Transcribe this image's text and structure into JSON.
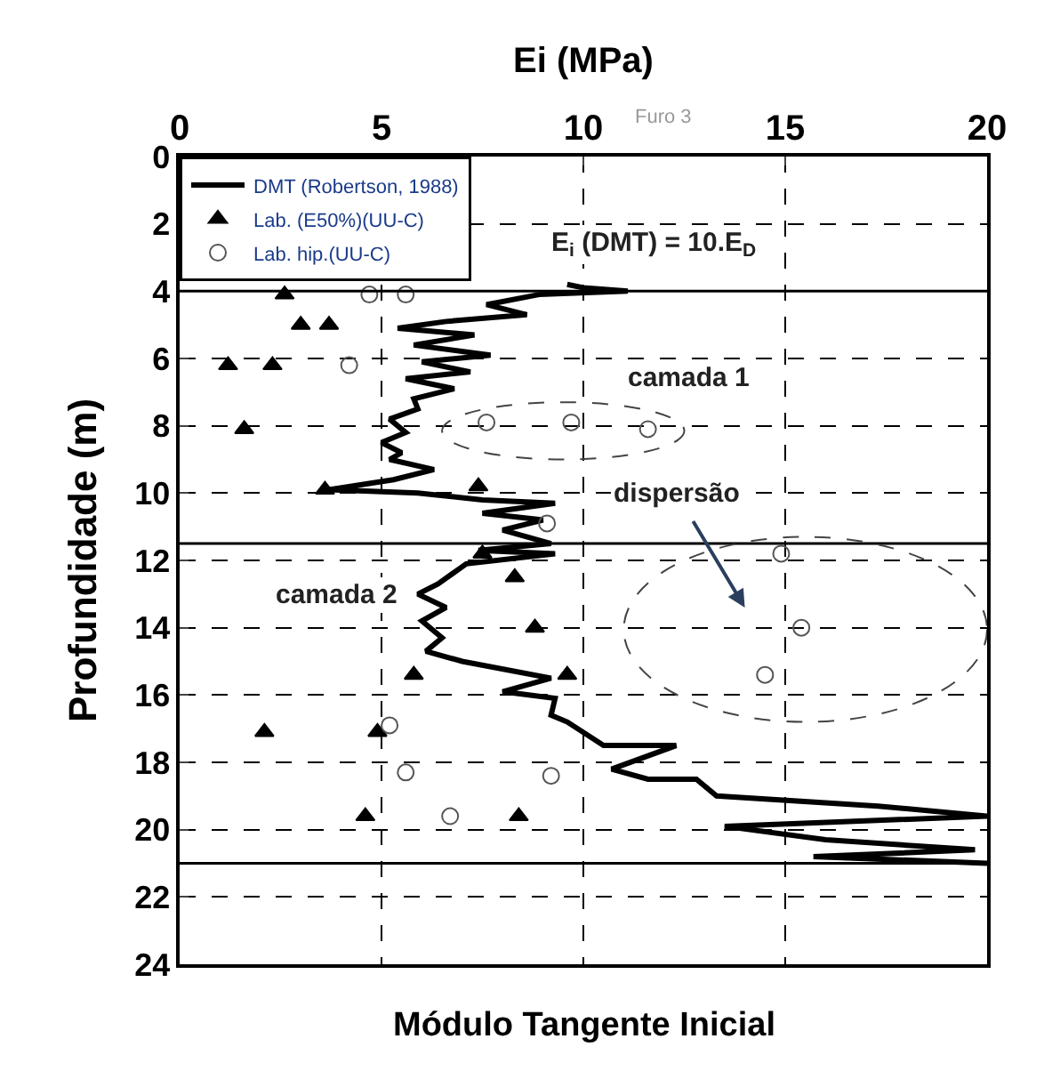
{
  "chart_data": {
    "type": "line",
    "xlabel": "Ei (MPa)",
    "ylabel": "Profundidade (m)",
    "xlim": [
      0,
      20
    ],
    "xticks": [
      0,
      5,
      10,
      15,
      20
    ],
    "ylim": [
      24,
      0
    ],
    "yticks": [
      0,
      2,
      4,
      6,
      8,
      10,
      12,
      14,
      16,
      18,
      20,
      22,
      24
    ],
    "grid": true,
    "legend": "top left",
    "series": [
      {
        "name": "DMT (Robertson, 1988)",
        "color": "#000000",
        "marker": "none",
        "line_style": "solid",
        "x": [
          9.6,
          10.0,
          11.1,
          8.9,
          7.6,
          8.6,
          6.6,
          5.4,
          7.3,
          5.8,
          7.7,
          6.0,
          7.2,
          5.6,
          6.8,
          5.8,
          5.9,
          5.2,
          5.6,
          5.0,
          5.5,
          5.2,
          6.3,
          5.3,
          3.7,
          5.9,
          7.5,
          9.3,
          7.5,
          9.0,
          8.0,
          9.2,
          7.4,
          9.3,
          7.1,
          6.4,
          5.9,
          6.6,
          6.0,
          6.5,
          6.1,
          7.0,
          9.2,
          8.0,
          9.3,
          9.2,
          9.6,
          10.5,
          12.3,
          10.7,
          11.6,
          12.8,
          13.3,
          17.3,
          20.0,
          13.5,
          16.0,
          19.7,
          15.7,
          20.0
        ],
        "values": [
          3.8,
          3.9,
          4.0,
          4.1,
          4.4,
          4.7,
          4.9,
          5.1,
          5.3,
          5.6,
          5.9,
          6.1,
          6.4,
          6.6,
          6.9,
          7.2,
          7.5,
          7.8,
          8.2,
          8.5,
          8.8,
          9.0,
          9.3,
          9.6,
          9.9,
          10.0,
          10.2,
          10.3,
          10.6,
          10.8,
          11.1,
          11.5,
          11.7,
          11.8,
          12.1,
          12.7,
          13.0,
          13.4,
          13.8,
          14.3,
          14.7,
          15.0,
          15.5,
          15.9,
          16.1,
          16.6,
          16.8,
          17.5,
          17.5,
          18.2,
          18.5,
          18.5,
          19.0,
          19.3,
          19.6,
          19.9,
          20.3,
          20.6,
          20.8,
          21.0
        ]
      },
      {
        "name": "Lab. (E50%)(UU-C)",
        "type": "scatter",
        "color": "#000000",
        "marker": "triangle",
        "x": [
          2.6,
          3.0,
          3.7,
          1.2,
          2.3,
          1.6,
          3.6,
          7.4,
          7.5,
          8.3,
          8.8,
          5.8,
          9.6,
          2.1,
          4.9,
          4.6,
          8.4
        ],
        "values": [
          4.1,
          5.0,
          5.0,
          6.2,
          6.2,
          8.1,
          9.9,
          9.8,
          11.8,
          12.5,
          14.0,
          15.4,
          15.4,
          17.1,
          17.1,
          19.6,
          19.6
        ]
      },
      {
        "name": "Lab. hip.(UU-C)",
        "type": "scatter",
        "color": "#555555",
        "marker": "circle",
        "x": [
          4.7,
          5.6,
          4.2,
          7.6,
          9.7,
          11.6,
          9.1,
          14.9,
          15.4,
          14.5,
          5.2,
          5.6,
          6.7,
          9.2
        ],
        "values": [
          4.1,
          4.1,
          6.2,
          7.9,
          7.9,
          8.1,
          10.9,
          11.8,
          14.0,
          15.4,
          16.9,
          18.3,
          19.6,
          18.4
        ]
      }
    ],
    "ref_lines": [
      {
        "axis": "y",
        "value": 4,
        "color": "#000000",
        "line_style": "solid"
      },
      {
        "axis": "y",
        "value": 11.5,
        "color": "#000000",
        "line_style": "solid"
      },
      {
        "axis": "y",
        "value": 21,
        "color": "#000000",
        "line_style": "solid"
      }
    ],
    "annotations": [
      "E$_{i}$ (DMT) = 10.E$_{D}$",
      "camada 1",
      "dispersão",
      "camada 2",
      "Furo 3",
      "Módulo Tangente Inicial"
    ]
  }
}
